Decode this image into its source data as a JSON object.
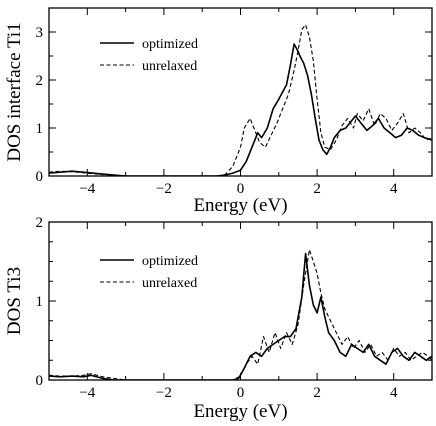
{
  "chart_data": [
    {
      "type": "line",
      "title": "",
      "xlabel": "Energy (eV)",
      "ylabel": "DOS interface Ti1",
      "xlim": [
        -5,
        5
      ],
      "ylim": [
        0,
        3.5
      ],
      "xticks": [
        -4,
        -2,
        0,
        2,
        4
      ],
      "yticks": [
        0,
        1,
        2,
        3
      ],
      "minor_x_step": 1,
      "minor_y_step": 0.5,
      "grid": false,
      "legend_position": "top-left",
      "series": [
        {
          "name": "optimized",
          "style": "solid",
          "x": [
            -5,
            -4.7,
            -4.4,
            -4.0,
            -3.6,
            -3.3,
            -3.0,
            -2.5,
            -2.0,
            -1.5,
            -1.0,
            -0.6,
            -0.4,
            -0.2,
            0.0,
            0.15,
            0.3,
            0.45,
            0.55,
            0.7,
            0.85,
            1.0,
            1.1,
            1.2,
            1.3,
            1.4,
            1.5,
            1.55,
            1.65,
            1.75,
            1.85,
            1.95,
            2.05,
            2.15,
            2.25,
            2.35,
            2.45,
            2.6,
            2.75,
            2.9,
            3.0,
            3.15,
            3.3,
            3.45,
            3.6,
            3.75,
            3.9,
            4.05,
            4.2,
            4.35,
            4.5,
            4.65,
            4.8,
            5.0
          ],
          "y": [
            0.06,
            0.08,
            0.1,
            0.07,
            0.04,
            0.02,
            0.0,
            0.0,
            0.0,
            0.0,
            0.0,
            0.0,
            0.02,
            0.06,
            0.12,
            0.3,
            0.6,
            0.9,
            0.8,
            1.0,
            1.4,
            1.6,
            1.75,
            1.9,
            2.3,
            2.75,
            2.6,
            2.5,
            2.35,
            2.1,
            1.7,
            1.2,
            0.75,
            0.55,
            0.45,
            0.6,
            0.8,
            0.95,
            1.0,
            1.15,
            1.25,
            1.1,
            0.95,
            1.05,
            1.2,
            1.0,
            0.9,
            0.8,
            0.85,
            1.0,
            0.95,
            0.85,
            0.8,
            0.75
          ]
        },
        {
          "name": "unrelaxed",
          "style": "dashed",
          "x": [
            -5,
            -4.7,
            -4.4,
            -4.0,
            -3.6,
            -3.3,
            -3.0,
            -2.5,
            -2.0,
            -1.5,
            -1.0,
            -0.6,
            -0.4,
            -0.2,
            0.0,
            0.1,
            0.25,
            0.35,
            0.5,
            0.65,
            0.8,
            0.95,
            1.1,
            1.25,
            1.4,
            1.5,
            1.6,
            1.7,
            1.8,
            1.9,
            2.0,
            2.1,
            2.2,
            2.35,
            2.5,
            2.65,
            2.8,
            2.95,
            3.05,
            3.2,
            3.35,
            3.5,
            3.65,
            3.8,
            3.95,
            4.1,
            4.25,
            4.4,
            4.55,
            4.7,
            4.85,
            5.0
          ],
          "y": [
            0.08,
            0.1,
            0.09,
            0.06,
            0.03,
            0.02,
            0.0,
            0.0,
            0.0,
            0.0,
            0.0,
            0.0,
            0.03,
            0.2,
            0.6,
            1.0,
            1.2,
            1.0,
            0.7,
            0.6,
            0.85,
            1.1,
            1.4,
            1.7,
            2.2,
            2.6,
            3.05,
            3.15,
            2.9,
            2.4,
            1.6,
            0.9,
            0.6,
            0.55,
            0.75,
            1.05,
            1.2,
            1.0,
            1.3,
            1.15,
            1.4,
            1.05,
            1.3,
            1.2,
            0.95,
            1.1,
            1.3,
            0.9,
            1.0,
            0.9,
            0.75,
            0.8
          ]
        }
      ]
    },
    {
      "type": "line",
      "title": "",
      "xlabel": "Energy (eV)",
      "ylabel": "DOS Ti3",
      "xlim": [
        -5,
        5
      ],
      "ylim": [
        0,
        2
      ],
      "xticks": [
        -4,
        -2,
        0,
        2,
        4
      ],
      "yticks": [
        0,
        1,
        2
      ],
      "minor_x_step": 1,
      "minor_y_step": 0.25,
      "grid": false,
      "legend_position": "top-left",
      "series": [
        {
          "name": "optimized",
          "style": "solid",
          "x": [
            -5,
            -4.7,
            -4.4,
            -4.1,
            -3.9,
            -3.6,
            -3.3,
            -3.0,
            -2.5,
            -2.0,
            -1.5,
            -1.0,
            -0.5,
            -0.2,
            -0.05,
            0.1,
            0.25,
            0.4,
            0.55,
            0.7,
            0.85,
            1.0,
            1.15,
            1.3,
            1.45,
            1.6,
            1.7,
            1.8,
            1.9,
            2.0,
            2.1,
            2.2,
            2.3,
            2.45,
            2.6,
            2.75,
            2.9,
            3.05,
            3.2,
            3.35,
            3.5,
            3.65,
            3.8,
            3.95,
            4.1,
            4.25,
            4.4,
            4.55,
            4.7,
            4.85,
            5.0
          ],
          "y": [
            0.05,
            0.04,
            0.05,
            0.04,
            0.06,
            0.02,
            0.0,
            0.0,
            0.0,
            0.0,
            0.0,
            0.0,
            0.0,
            0.0,
            0.02,
            0.15,
            0.3,
            0.35,
            0.3,
            0.4,
            0.45,
            0.5,
            0.55,
            0.55,
            0.65,
            1.05,
            1.6,
            1.2,
            0.95,
            0.85,
            1.05,
            0.8,
            0.6,
            0.5,
            0.35,
            0.3,
            0.45,
            0.4,
            0.35,
            0.45,
            0.3,
            0.25,
            0.2,
            0.35,
            0.4,
            0.3,
            0.25,
            0.35,
            0.3,
            0.25,
            0.3
          ]
        },
        {
          "name": "unrelaxed",
          "style": "dashed",
          "x": [
            -5,
            -4.7,
            -4.4,
            -4.1,
            -3.9,
            -3.6,
            -3.3,
            -3.0,
            -2.5,
            -2.0,
            -1.5,
            -1.0,
            -0.5,
            -0.2,
            0.0,
            0.15,
            0.3,
            0.45,
            0.6,
            0.75,
            0.9,
            1.05,
            1.2,
            1.35,
            1.5,
            1.65,
            1.8,
            1.9,
            2.0,
            2.1,
            2.2,
            2.35,
            2.5,
            2.65,
            2.8,
            2.95,
            3.1,
            3.25,
            3.4,
            3.55,
            3.7,
            3.85,
            4.0,
            4.15,
            4.3,
            4.45,
            4.6,
            4.75,
            4.9,
            5.0
          ],
          "y": [
            0.06,
            0.05,
            0.05,
            0.06,
            0.08,
            0.04,
            0.02,
            0.0,
            0.0,
            0.0,
            0.0,
            0.0,
            0.0,
            0.0,
            0.05,
            0.2,
            0.3,
            0.2,
            0.55,
            0.35,
            0.6,
            0.4,
            0.6,
            0.45,
            0.7,
            1.2,
            1.65,
            1.5,
            1.35,
            1.1,
            0.9,
            0.75,
            0.6,
            0.45,
            0.55,
            0.4,
            0.5,
            0.35,
            0.45,
            0.3,
            0.35,
            0.25,
            0.4,
            0.3,
            0.35,
            0.25,
            0.3,
            0.35,
            0.3,
            0.25
          ]
        }
      ]
    }
  ]
}
